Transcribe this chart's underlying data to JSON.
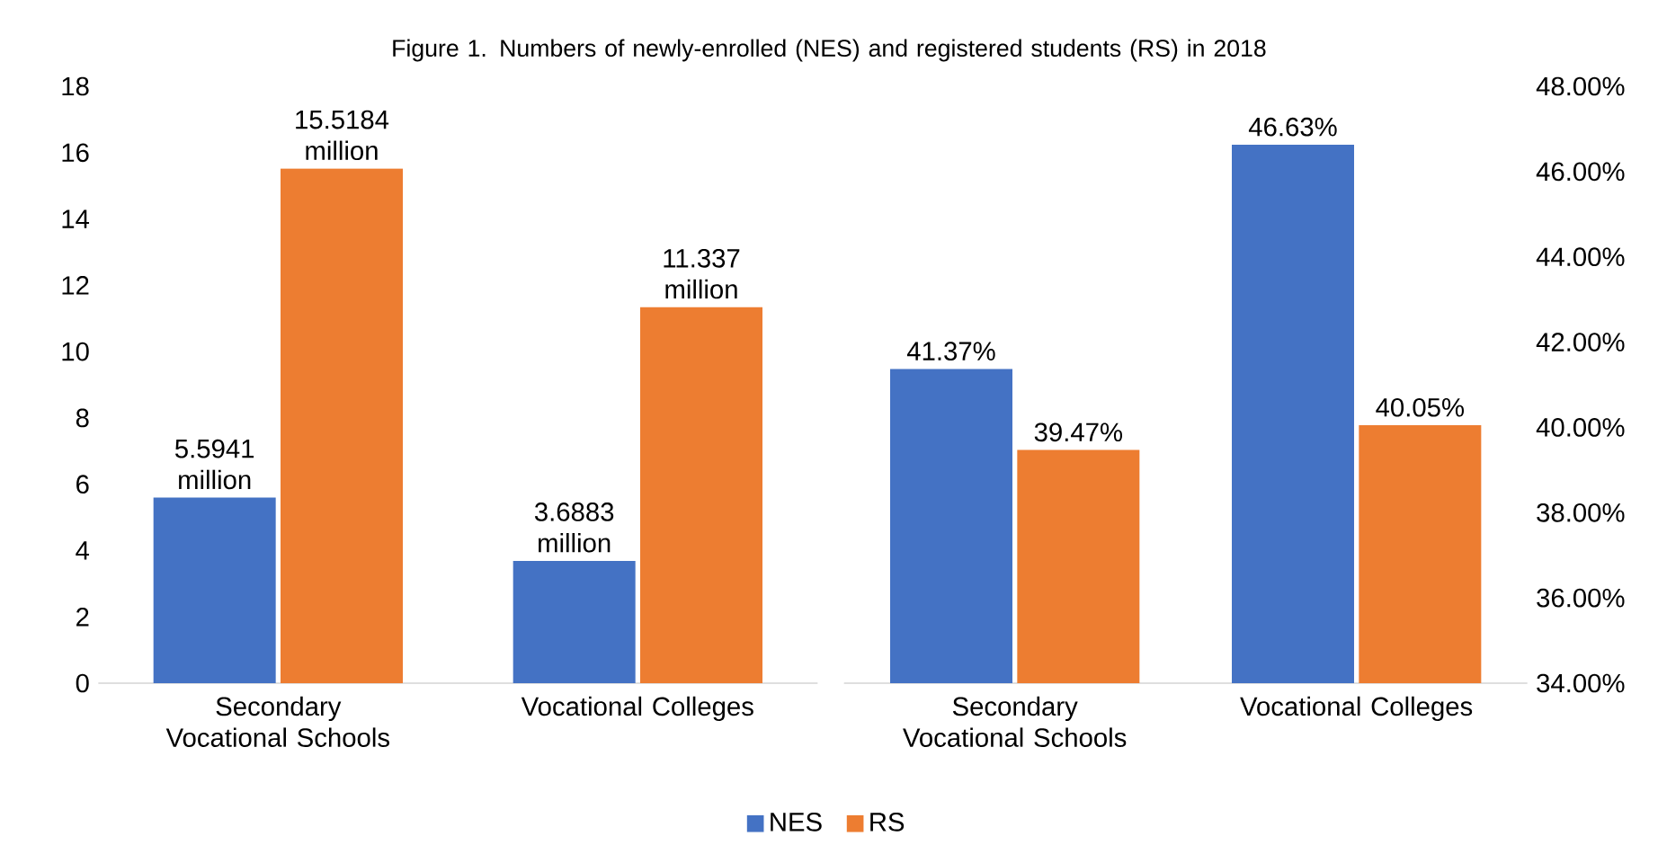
{
  "chart_data": [
    {
      "type": "bar",
      "title": "Figure 1. Numbers of newly-enrolled (NES) and registered students (RS) in 2018",
      "categories": [
        "Secondary Vocational Schools",
        "Vocational Colleges"
      ],
      "ylim": [
        0,
        18
      ],
      "yticks": [
        0,
        2,
        4,
        6,
        8,
        10,
        12,
        14,
        16,
        18
      ],
      "legend": "bottom",
      "series": [
        {
          "name": "NES",
          "color": "#4472c4",
          "values": [
            5.5941,
            3.6883
          ],
          "value_labels": [
            "5.5941 million",
            "3.6883 million"
          ]
        },
        {
          "name": "RS",
          "color": "#ed7d31",
          "values": [
            15.5184,
            11.337
          ],
          "value_labels": [
            "15.5184 million",
            "11.337 million"
          ]
        }
      ]
    },
    {
      "type": "bar",
      "categories": [
        "Secondary Vocational Schools",
        "Vocational Colleges"
      ],
      "y2lim": [
        34,
        48
      ],
      "y2ticks": [
        {
          "value": 34,
          "label": "34.00%"
        },
        {
          "value": 36,
          "label": "36.00%"
        },
        {
          "value": 38,
          "label": "38.00%"
        },
        {
          "value": 40,
          "label": "40.00%"
        },
        {
          "value": 42,
          "label": "42.00%"
        },
        {
          "value": 44,
          "label": "44.00%"
        },
        {
          "value": 46,
          "label": "46.00%"
        },
        {
          "value": 48,
          "label": "48.00%"
        }
      ],
      "series": [
        {
          "color": "#4472c4",
          "axis": "y2",
          "values": [
            41.37,
            46.63
          ],
          "value_labels": [
            "41.37%",
            "46.63%"
          ]
        },
        {
          "color": "#ed7d31",
          "axis": "y2",
          "values": [
            39.47,
            40.05
          ],
          "value_labels": [
            "39.47%",
            "40.05%"
          ]
        }
      ]
    }
  ]
}
